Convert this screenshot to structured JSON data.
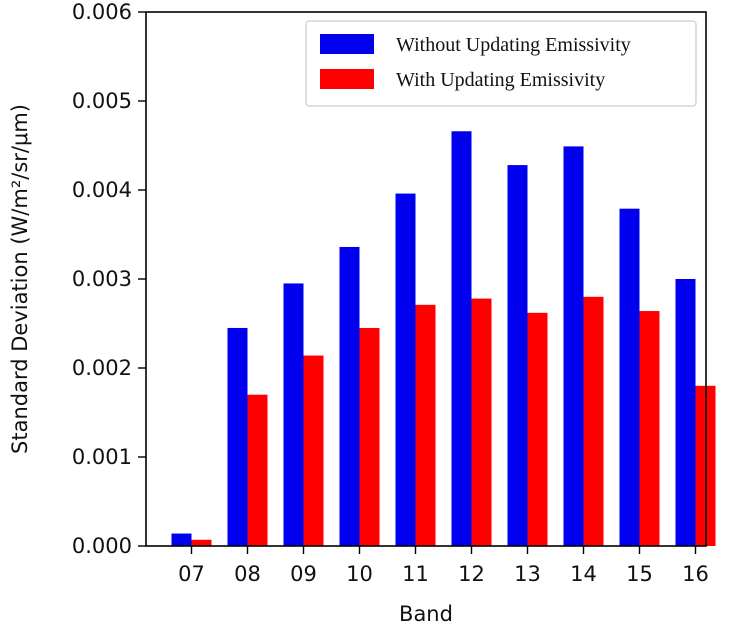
{
  "chart_data": {
    "type": "bar",
    "title": "",
    "xlabel": "Band",
    "ylabel": "Standard Deviation (W/m²/sr/μm)",
    "categories": [
      "07",
      "08",
      "09",
      "10",
      "11",
      "12",
      "13",
      "14",
      "15",
      "16"
    ],
    "series": [
      {
        "name": "Without Updating Emissivity",
        "color": "#0000ee",
        "values": [
          0.00014,
          0.00245,
          0.00295,
          0.00336,
          0.00396,
          0.00466,
          0.00428,
          0.00449,
          0.00379,
          0.003
        ]
      },
      {
        "name": "With Updating Emissivity",
        "color": "#ff0000",
        "values": [
          7e-05,
          0.0017,
          0.00214,
          0.00245,
          0.00271,
          0.00278,
          0.00262,
          0.0028,
          0.00264,
          0.0018
        ]
      }
    ],
    "ylim": [
      0,
      0.006
    ],
    "yticks": [
      "0.000",
      "0.001",
      "0.002",
      "0.003",
      "0.004",
      "0.005",
      "0.006"
    ],
    "grid": false,
    "legend_position": "top-right"
  }
}
